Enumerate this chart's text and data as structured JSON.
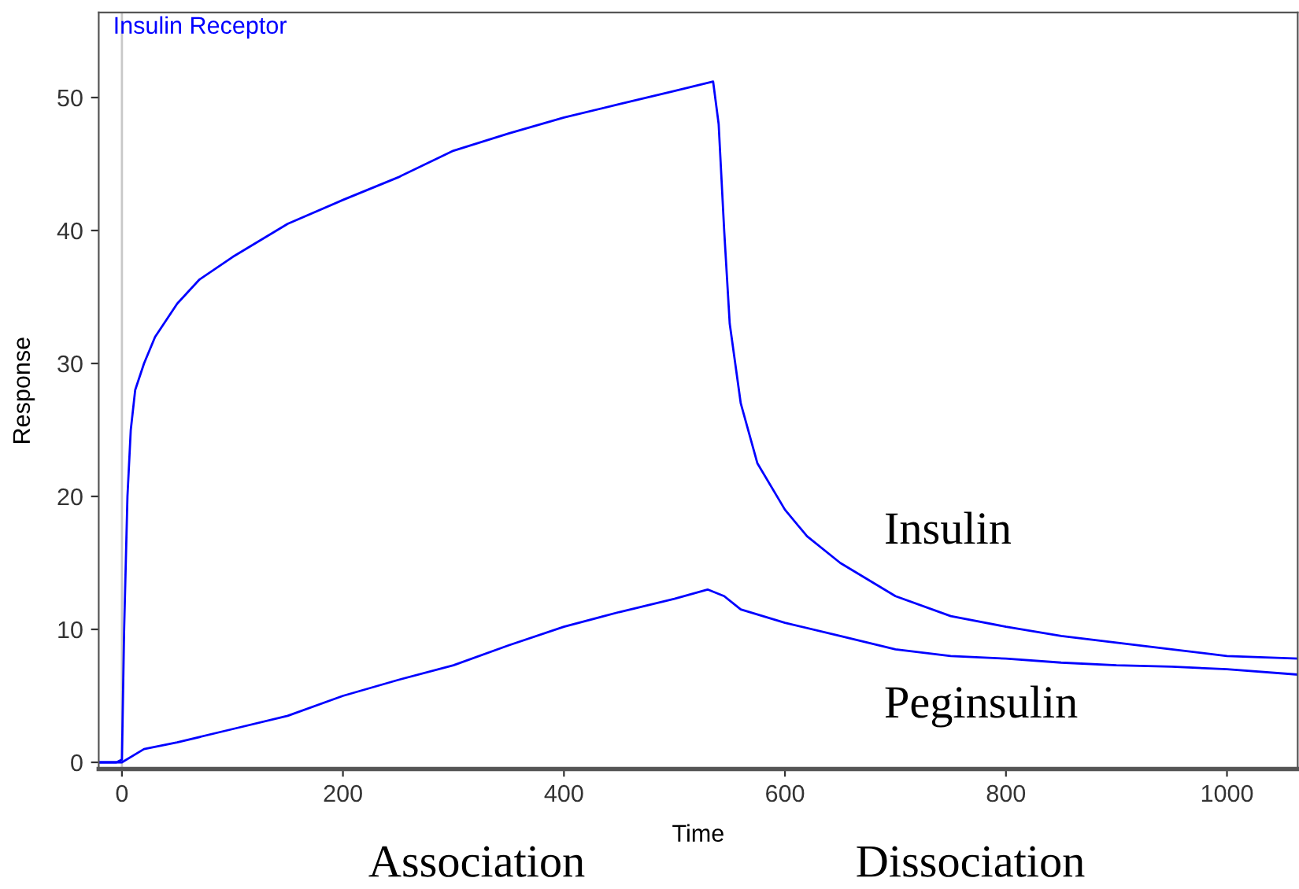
{
  "chart_data": {
    "type": "line",
    "title": "Insulin Receptor",
    "xlabel": "Time",
    "ylabel": "Response",
    "xlim": [
      -21,
      1064
    ],
    "ylim": [
      -0.5,
      56.4
    ],
    "xticks": [
      0,
      200,
      400,
      600,
      800,
      1000
    ],
    "yticks": [
      0,
      10,
      20,
      30,
      40,
      50
    ],
    "grid": false,
    "legend": false,
    "marker": "none",
    "line_style": "solid",
    "ref_lines": [
      {
        "axis": "x",
        "value": 0,
        "color": "#c8c8c8"
      }
    ],
    "annotations": [
      "Association",
      "Dissociation"
    ],
    "series": [
      {
        "name": "Insulin",
        "color": "#0000ff",
        "x": [
          -20,
          -5,
          0,
          2,
          5,
          8,
          12,
          20,
          30,
          50,
          70,
          100,
          150,
          200,
          250,
          300,
          350,
          400,
          450,
          500,
          535,
          540,
          545,
          550,
          560,
          575,
          600,
          620,
          650,
          700,
          750,
          800,
          850,
          900,
          950,
          1000,
          1064
        ],
        "values": [
          0,
          0,
          0.2,
          10,
          20,
          25,
          28,
          30,
          32,
          34.5,
          36.3,
          38,
          40.5,
          42.3,
          44,
          46,
          47.3,
          48.5,
          49.5,
          50.5,
          51.2,
          48,
          40,
          33,
          27,
          22.5,
          19,
          17,
          15,
          12.5,
          11,
          10.2,
          9.5,
          9,
          8.5,
          8,
          7.8
        ]
      },
      {
        "name": "Peginsulin",
        "color": "#0000ff",
        "x": [
          -20,
          0,
          20,
          50,
          100,
          150,
          200,
          250,
          300,
          350,
          400,
          450,
          500,
          530,
          545,
          560,
          600,
          650,
          700,
          750,
          800,
          850,
          900,
          950,
          1000,
          1064
        ],
        "values": [
          0,
          0,
          1,
          1.5,
          2.5,
          3.5,
          5,
          6.2,
          7.3,
          8.8,
          10.2,
          11.3,
          12.3,
          13,
          12.5,
          11.5,
          10.5,
          9.5,
          8.5,
          8,
          7.8,
          7.5,
          7.3,
          7.2,
          7,
          6.6
        ]
      }
    ]
  }
}
